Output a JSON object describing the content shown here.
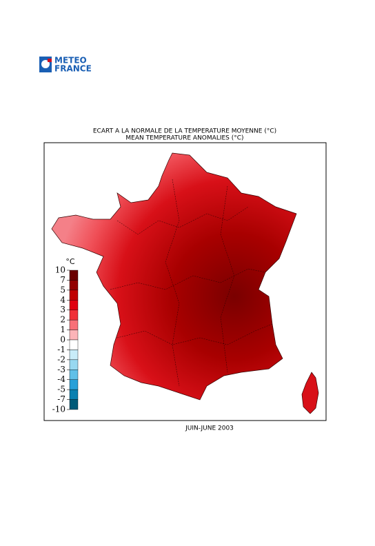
{
  "logo": {
    "line1": "METEO",
    "line2": "FRANCE"
  },
  "map": {
    "title": "ECART A LA NORMALE DE LA TEMPERATURE MOYENNE (°C)",
    "subtitle": "MEAN TEMPERATURE ANOMALIES (°C)",
    "caption": "JUIN-JUNE 2003"
  },
  "legend": {
    "title": "°C",
    "ticks": [
      10,
      7,
      5,
      4,
      3,
      2,
      1,
      0,
      -1,
      -2,
      -3,
      -4,
      -5,
      -7,
      -10
    ],
    "colors": [
      "#6a0000",
      "#920000",
      "#c00000",
      "#e00010",
      "#f03038",
      "#f87078",
      "#fcb4b8",
      "#ffffff",
      "#c8ecf8",
      "#98d8f0",
      "#60c0e8",
      "#28a0d8",
      "#0a80b0",
      "#005a78"
    ]
  }
}
